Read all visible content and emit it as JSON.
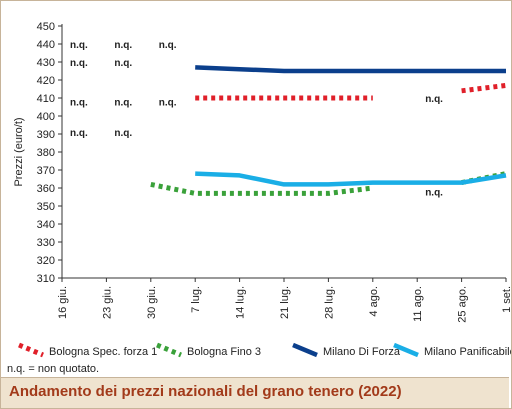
{
  "caption": "Andamento dei prezzi nazionali del grano tenero (2022)",
  "note": "n.q. = non quotato.",
  "colors": {
    "bologna_spec": "#e0202a",
    "bologna_fino": "#3aa13a",
    "milano_forza": "#0b3f8c",
    "milano_panif": "#1aaee6",
    "caption_bg": "#efe3cf",
    "caption_text": "#a23a1a"
  },
  "chart_data": {
    "type": "line",
    "ylabel": "Prezzi (euro/t)",
    "xlabel": "",
    "ylim": [
      310,
      450
    ],
    "yticks": [
      310,
      320,
      330,
      340,
      350,
      360,
      370,
      380,
      390,
      400,
      410,
      420,
      430,
      440,
      450
    ],
    "categories": [
      "16 giu.",
      "23 giu.",
      "30 giu.",
      "7 lug.",
      "14 lug.",
      "21 lug.",
      "28 lug.",
      "4 ago.",
      "11 ago.",
      "25 ago.",
      "1 set."
    ],
    "legend_position": "bottom",
    "grid": false,
    "series": [
      {
        "name": "Bologna Spec. forza 1",
        "style": "dotted",
        "values": [
          null,
          null,
          null,
          410,
          410,
          410,
          410,
          410,
          null,
          414,
          417
        ]
      },
      {
        "name": "Bologna Fino 3",
        "style": "dotted",
        "values": [
          null,
          null,
          362,
          357,
          357,
          357,
          357,
          360,
          null,
          363,
          368
        ]
      },
      {
        "name": "Milano Di Forza",
        "style": "solid",
        "values": [
          null,
          null,
          null,
          427,
          426,
          425,
          425,
          425,
          425,
          425,
          425
        ]
      },
      {
        "name": "Milano Panificabile",
        "style": "solid",
        "values": [
          null,
          null,
          null,
          368,
          367,
          362,
          362,
          363,
          363,
          363,
          367
        ]
      }
    ],
    "annotations": [
      {
        "text": "n.q.",
        "x": "16 giu.",
        "y": 440
      },
      {
        "text": "n.q.",
        "x": "23 giu.",
        "y": 440
      },
      {
        "text": "n.q.",
        "x": "30 giu.",
        "y": 440
      },
      {
        "text": "n.q.",
        "x": "16 giu.",
        "y": 430
      },
      {
        "text": "n.q.",
        "x": "23 giu.",
        "y": 430
      },
      {
        "text": "n.q.",
        "x": "16 giu.",
        "y": 408
      },
      {
        "text": "n.q.",
        "x": "23 giu.",
        "y": 408
      },
      {
        "text": "n.q.",
        "x": "30 giu.",
        "y": 408
      },
      {
        "text": "n.q.",
        "x": "11 ago.",
        "y": 410
      },
      {
        "text": "n.q.",
        "x": "16 giu.",
        "y": 391
      },
      {
        "text": "n.q.",
        "x": "23 giu.",
        "y": 391
      },
      {
        "text": "n.q.",
        "x": "11 ago.",
        "y": 358
      }
    ]
  }
}
